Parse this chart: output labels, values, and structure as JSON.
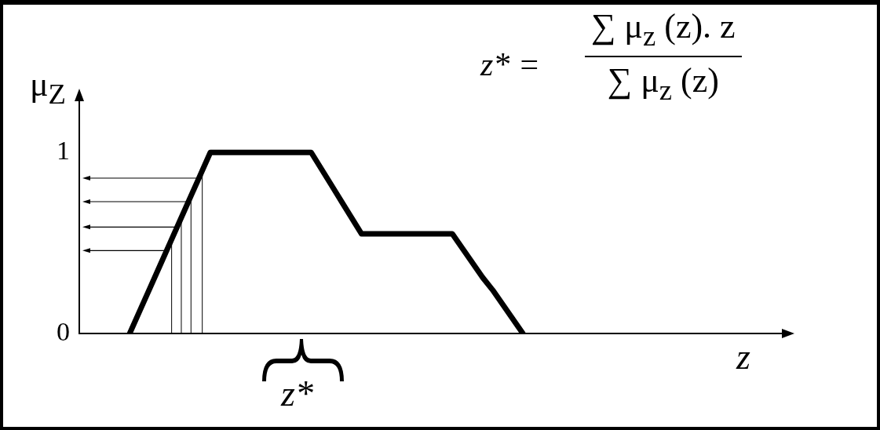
{
  "chart_data": {
    "type": "line",
    "ylabel": "μ$_{Z}$",
    "xlabel": "z",
    "annotations": [
      "z* =",
      "∑ μ$_{z}$ (z). z",
      "∑ μ$_{z}$ (z)",
      "z*"
    ],
    "categories": [
      null,
      null,
      null,
      null,
      null,
      null,
      null,
      null,
      null,
      null,
      null,
      null,
      null,
      null,
      null,
      null,
      null,
      null,
      null,
      null,
      null,
      null,
      null,
      null,
      null,
      null,
      null,
      null,
      null,
      null,
      null,
      null,
      null,
      null,
      null,
      null,
      null,
      null,
      null,
      null,
      null,
      null,
      null,
      null,
      null,
      null,
      null,
      null,
      null,
      null,
      null,
      null,
      null,
      null,
      null,
      null,
      null,
      null,
      null,
      null,
      null,
      null,
      null,
      null,
      null,
      null,
      null,
      null,
      null,
      null,
      null
    ],
    "series": [
      {
        "color": "#000000",
        "values": [
          null,
          null,
          null,
          null,
          null,
          0,
          0.125,
          0.25,
          0.375,
          0.5,
          0.625,
          0.75,
          0.875,
          1,
          1,
          1,
          1,
          1,
          1,
          1,
          1,
          1,
          1,
          1,
          0.91,
          0.82,
          0.73,
          0.64,
          0.55,
          0.55,
          0.55,
          0.55,
          0.55,
          0.55,
          0.55,
          0.55,
          0.55,
          0.55,
          0.47,
          0.39,
          0.31,
          0.24,
          0.16,
          0.08,
          0,
          null,
          null,
          null,
          null,
          null,
          null,
          null,
          null,
          null,
          null,
          null,
          null,
          null,
          null,
          null,
          null,
          null,
          null,
          null,
          null,
          null,
          null,
          null,
          null,
          null,
          null
        ]
      }
    ],
    "ylim": [
      0,
      1.3
    ],
    "yticks": [
      0,
      1
    ],
    "grid": false,
    "legend": false,
    "marker": "none",
    "line_style": "solid",
    "tick_labels": "y"
  }
}
